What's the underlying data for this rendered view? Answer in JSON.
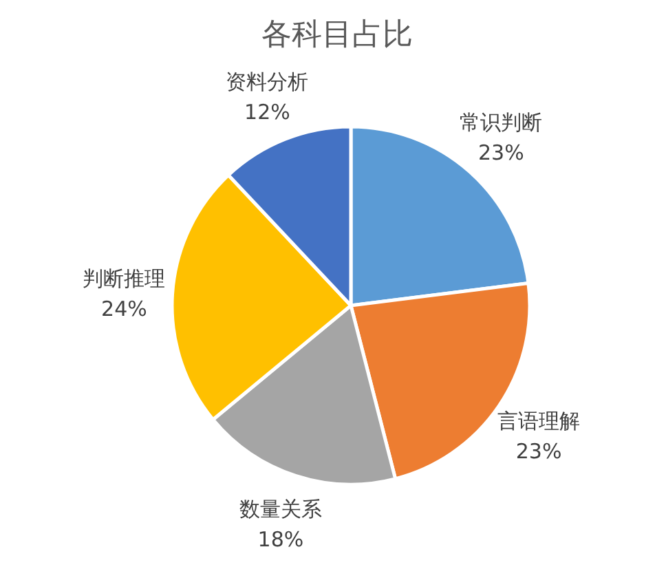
{
  "chart_data": {
    "type": "pie",
    "title": "各科目占比",
    "categories": [
      "常识判断",
      "言语理解",
      "数量关系",
      "判断推理",
      "资料分析"
    ],
    "values": [
      23,
      23,
      18,
      24,
      12
    ],
    "value_labels": [
      "23%",
      "23%",
      "18%",
      "24%",
      "12%"
    ],
    "colors": [
      "#5b9bd5",
      "#ed7d31",
      "#a5a5a5",
      "#ffc000",
      "#4472c4"
    ]
  }
}
